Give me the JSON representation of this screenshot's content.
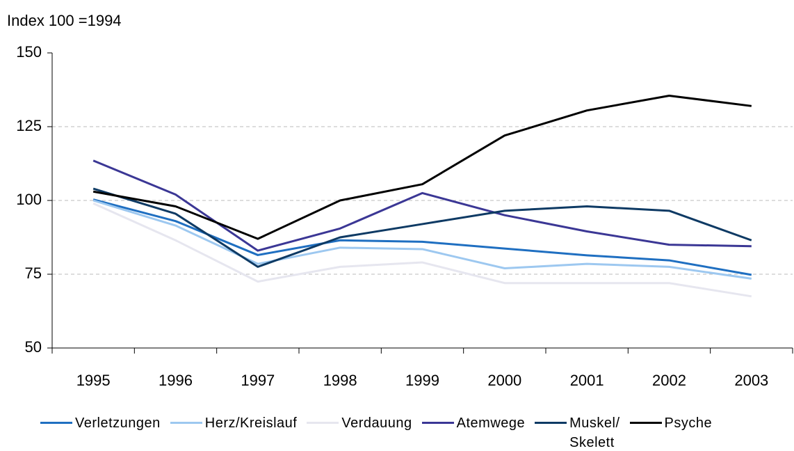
{
  "chart_data": {
    "type": "line",
    "title": "Index 100 =1994",
    "categories": [
      "1995",
      "1996",
      "1997",
      "1998",
      "1999",
      "2000",
      "2001",
      "2002",
      "2003"
    ],
    "series": [
      {
        "name": "Verletzungen",
        "color": "#1f6fc1",
        "values": [
          100.3,
          93,
          81.5,
          86.5,
          86,
          83.7,
          81.4,
          79.7,
          74.8
        ]
      },
      {
        "name": "Herz/Kreislauf",
        "color": "#9dc8f0",
        "values": [
          100,
          91.5,
          78.5,
          84,
          83.5,
          77,
          78.5,
          77.5,
          73.5
        ]
      },
      {
        "name": "Verdauung",
        "color": "#e6e6ef",
        "values": [
          99,
          86.5,
          72.5,
          77.5,
          79,
          72,
          72,
          72,
          67.5
        ]
      },
      {
        "name": "Atemwege",
        "color": "#3b3795",
        "values": [
          113.5,
          102,
          83,
          90.5,
          102.5,
          95,
          89.5,
          85,
          84.5
        ]
      },
      {
        "name": "Muskel/ Skelett",
        "color": "#0e3a64",
        "values": [
          104,
          95.5,
          77.5,
          87.5,
          92,
          96.5,
          98,
          96.5,
          86.5
        ]
      },
      {
        "name": "Psyche",
        "color": "#000000",
        "values": [
          103,
          98,
          87,
          100,
          105.5,
          122,
          130.5,
          135.5,
          132
        ]
      }
    ],
    "ylim": [
      50,
      150
    ],
    "yticks": [
      50,
      75,
      100,
      125,
      150
    ],
    "grid": true,
    "legend": "bottom"
  }
}
